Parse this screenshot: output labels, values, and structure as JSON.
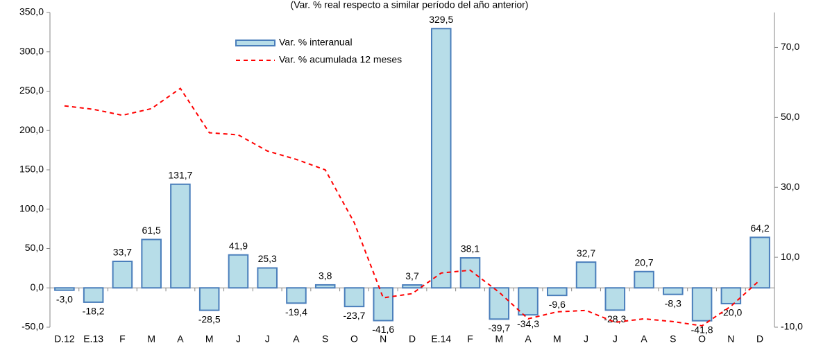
{
  "chart_data": {
    "type": "bar",
    "subtitle": "(Var. % real respecto a similar período del año anterior)",
    "categories": [
      "D.12",
      "E.13",
      "F",
      "M",
      "A",
      "M",
      "J",
      "J",
      "A",
      "S",
      "O",
      "N",
      "D",
      "E.14",
      "F",
      "M",
      "A",
      "M",
      "J",
      "J",
      "A",
      "S",
      "O",
      "N",
      "D"
    ],
    "series": [
      {
        "name": "Var. % interanual",
        "type": "bar",
        "color": "#b7dde8",
        "edge_color": "#4a7ebb",
        "values": [
          -3.0,
          -18.2,
          33.7,
          61.5,
          131.7,
          -28.5,
          41.9,
          25.3,
          -19.4,
          3.8,
          -23.7,
          -41.6,
          3.7,
          329.5,
          38.1,
          -39.7,
          -34.3,
          -9.6,
          32.7,
          -28.3,
          20.7,
          -8.3,
          -41.8,
          -20.0,
          64.2
        ],
        "value_labels": [
          "-3,0",
          "-18,2",
          "33,7",
          "61,5",
          "131,7",
          "-28,5",
          "41,9",
          "25,3",
          "-19,4",
          "3,8",
          "-23,7",
          "-41,6",
          "3,7",
          "329,5",
          "38,1",
          "-39,7",
          "-34,3",
          "-9,6",
          "32,7",
          "-28,3",
          "20,7",
          "-8,3",
          "-41,8",
          "-20,0",
          "64,2"
        ]
      },
      {
        "name": "Var. % acumulada 12 meses",
        "type": "line",
        "axis": "y2",
        "color": "#ff0000",
        "values": [
          53.3,
          52.3,
          50.6,
          52.5,
          58.3,
          45.6,
          45.0,
          40.4,
          38.0,
          35.0,
          19.9,
          -1.6,
          -0.4,
          5.5,
          6.3,
          0.0,
          -7.6,
          -5.6,
          -5.2,
          -8.6,
          -7.6,
          -8.4,
          -9.6,
          -4.0,
          3.5
        ]
      }
    ],
    "ylim": [
      -50,
      350
    ],
    "yticks": [
      {
        "value": -50,
        "label": "-50,0"
      },
      {
        "value": 0,
        "label": "0,0"
      },
      {
        "value": 50,
        "label": "50,0"
      },
      {
        "value": 100,
        "label": "100,0"
      },
      {
        "value": 150,
        "label": "150,0"
      },
      {
        "value": 200,
        "label": "200,0"
      },
      {
        "value": 250,
        "label": "250,0"
      },
      {
        "value": 300,
        "label": "300,0"
      },
      {
        "value": 350,
        "label": "350,0"
      }
    ],
    "y2lim": [
      -10,
      80
    ],
    "y2ticks": [
      {
        "value": -10,
        "label": "-10,0"
      },
      {
        "value": 10,
        "label": "10,0"
      },
      {
        "value": 30,
        "label": "30,0"
      },
      {
        "value": 50,
        "label": "50,0"
      },
      {
        "value": 70,
        "label": "70,0"
      }
    ],
    "grid": false
  }
}
